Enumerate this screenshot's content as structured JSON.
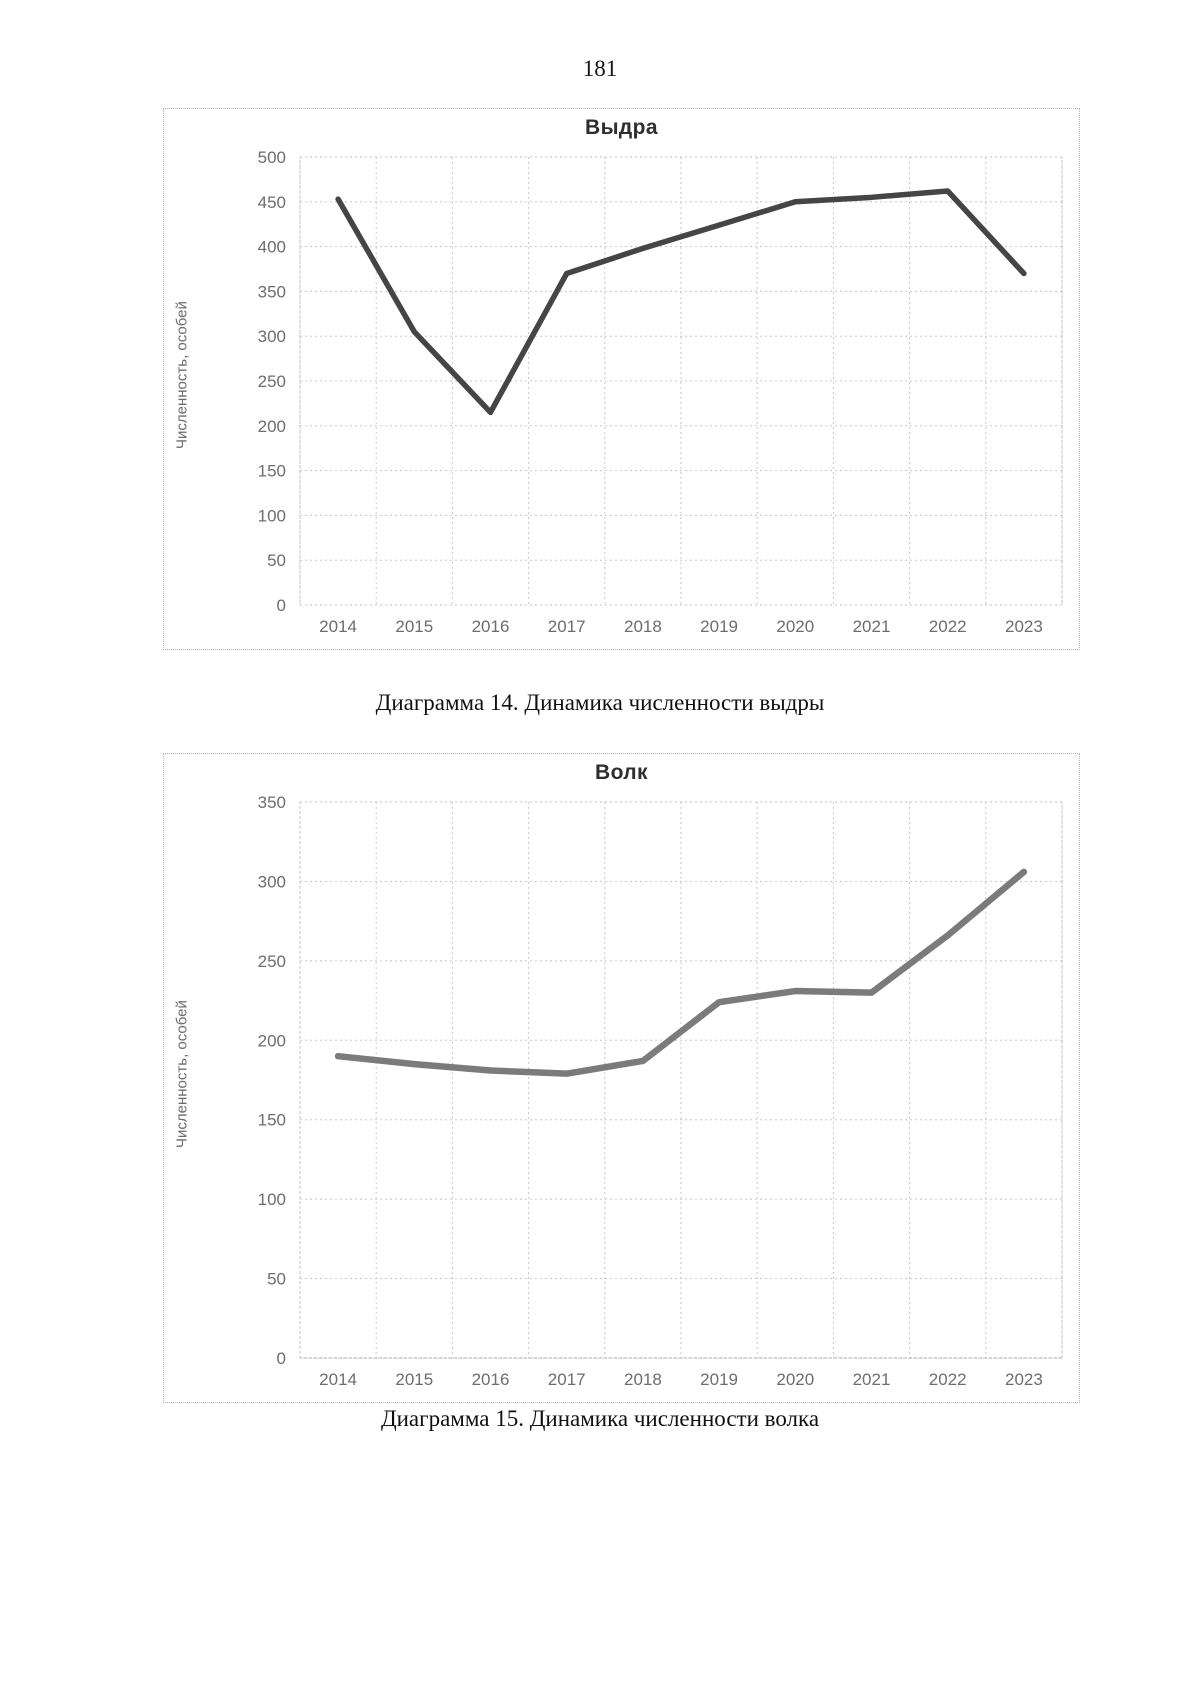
{
  "page": {
    "number": "181"
  },
  "chart_data": [
    {
      "type": "line",
      "title": "Выдра",
      "caption": "Диаграмма 14. Динамика численности выдры",
      "ylabel": "Численность, особей",
      "xlabel": "",
      "categories": [
        "2014",
        "2015",
        "2016",
        "2017",
        "2018",
        "2019",
        "2020",
        "2021",
        "2022",
        "2023"
      ],
      "values": [
        453,
        305,
        215,
        370,
        398,
        424,
        450,
        455,
        462,
        370
      ],
      "ylim": [
        0,
        500
      ],
      "ytick_step": 50,
      "grid": true,
      "legend_position": "none",
      "line_color": "#454545",
      "line_width": 5.5
    },
    {
      "type": "line",
      "title": "Волк",
      "caption": "Диаграмма 15. Динамика численности волка",
      "ylabel": "Численность, особей",
      "xlabel": "",
      "categories": [
        "2014",
        "2015",
        "2016",
        "2017",
        "2018",
        "2019",
        "2020",
        "2021",
        "2022",
        "2023"
      ],
      "values": [
        190,
        185,
        181,
        179,
        187,
        224,
        231,
        230,
        266,
        306
      ],
      "ylim": [
        0,
        350
      ],
      "ytick_step": 50,
      "grid": true,
      "legend_position": "none",
      "line_color": "#7b7b7b",
      "line_width": 6.5
    }
  ]
}
